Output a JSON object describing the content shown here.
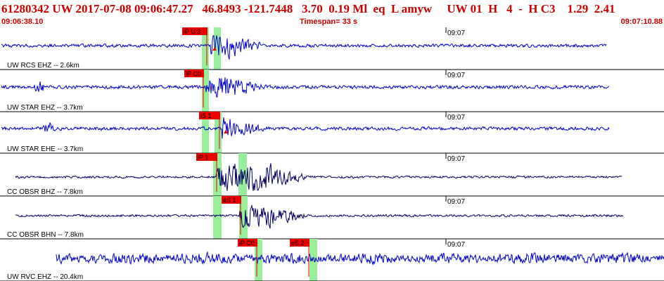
{
  "header": {
    "event_line": "61280342 UW 2017-07-08 09:06:47.27   46.8493 -121.7448   3.70  0.19 Ml  eq  L amyw     UW 01  H   4  -  H C3    1.29  2.41",
    "start_time": "09:06:38.10",
    "timespan": "Timespan=  33 s",
    "end_time": "09:07:10.88"
  },
  "colors": {
    "trace_blue": "#0000cc",
    "trace_dark": "#000066",
    "pick_box": "#ee0000",
    "pick_window": "#99ee99"
  },
  "traces": [
    {
      "label": "UW RCS EHZ -- 2.6km",
      "time_mark": "09:07",
      "color": "trace_blue",
      "picks": [
        {
          "label": "iP U 3"
        }
      ]
    },
    {
      "label": "UW STAR EHZ -- 3.7km",
      "time_mark": "09:07",
      "color": "trace_blue",
      "picks": [
        {
          "label": "iP C0"
        }
      ]
    },
    {
      "label": "UW STAR EHE -- 3.7km",
      "time_mark": "09:07",
      "color": "trace_blue",
      "picks": [
        {
          "label": "iS 1"
        }
      ]
    },
    {
      "label": "CC OBSR BHZ -- 7.8km",
      "time_mark": "09:07",
      "color": "trace_dark",
      "picks": [
        {
          "label": "iP 1"
        }
      ]
    },
    {
      "label": "CC OBSR BHN -- 7.8km",
      "time_mark": "09:07",
      "color": "trace_dark",
      "picks": [
        {
          "label": "eS 1"
        }
      ]
    },
    {
      "label": "UW RVC EHZ -- 20.4km",
      "time_mark": "09:07",
      "color": "trace_blue",
      "picks": [
        {
          "label": "iP C0"
        },
        {
          "label": "eS 2"
        }
      ]
    }
  ]
}
